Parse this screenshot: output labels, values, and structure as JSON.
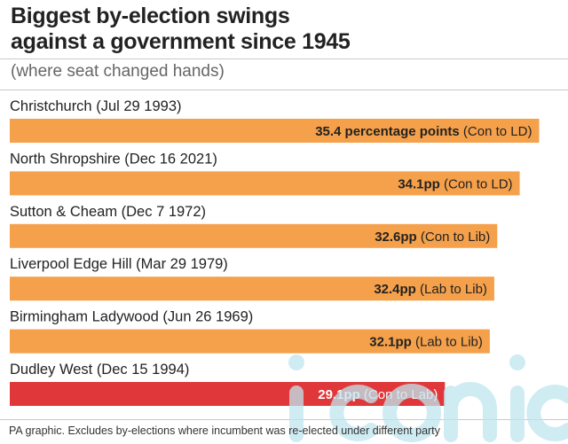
{
  "title_lines": [
    "Biggest by-election swings",
    "against a government since 1945"
  ],
  "subtitle": "(where seat changed hands)",
  "footer": "PA graphic. Excludes by-elections where incumbent was re-elected under different party",
  "watermark": "iconic",
  "colors": {
    "bar": "#f5a04a",
    "highlight": "#e0383a",
    "text": "#222222",
    "rule": "#c9c9c9"
  },
  "chart_data": {
    "type": "bar",
    "orientation": "horizontal",
    "categories": [
      "Christchurch (Jul 29 1993)",
      "North Shropshire (Dec 16 2021)",
      "Sutton & Cheam (Dec 7 1972)",
      "Liverpool Edge Hill (Mar 29 1979)",
      "Birmingham Ladywood (Jun 26 1969)",
      "Dudley West (Dec 15 1994)"
    ],
    "values": [
      35.4,
      34.1,
      32.6,
      32.4,
      32.1,
      29.1
    ],
    "value_labels": [
      "35.4 percentage points",
      "34.1pp",
      "32.6pp",
      "32.4pp",
      "32.1pp",
      "29.1pp"
    ],
    "annotations": [
      "(Con to LD)",
      "(Con to LD)",
      "(Con to Lib)",
      "(Lab to Lib)",
      "(Lab to Lib)",
      "(Con to Lab)"
    ],
    "highlight_index": 5,
    "xlim": [
      0,
      36.5
    ],
    "grid": false
  }
}
